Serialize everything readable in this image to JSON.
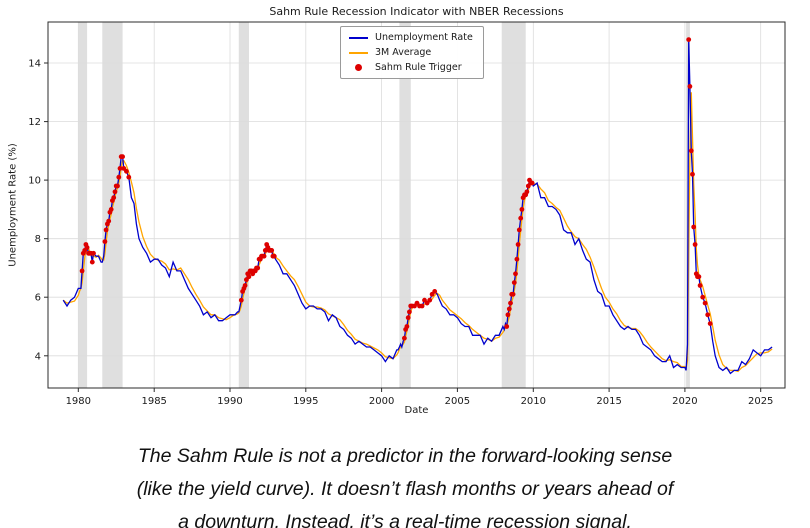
{
  "chart_data": {
    "type": "line",
    "title": "Sahm Rule Recession Indicator with NBER Recessions",
    "xlabel": "Date",
    "ylabel": "Unemployment Rate (%)",
    "xlim": [
      1978.0,
      2026.6
    ],
    "ylim": [
      2.9,
      15.4
    ],
    "x_ticks": [
      1980,
      1985,
      1990,
      1995,
      2000,
      2005,
      2010,
      2015,
      2020,
      2025
    ],
    "y_ticks": [
      4,
      6,
      8,
      10,
      12,
      14
    ],
    "grid": true,
    "colors": {
      "unemployment_line": "#0000cc",
      "three_month_avg_line": "#ffa500",
      "sahm_trigger_dot": "#dd0000",
      "recession_band": "#bfbfbf",
      "gridline": "#dcdcdc",
      "axis": "#2b2b2b"
    },
    "legend": {
      "position": "upper center",
      "entries": [
        {
          "label": "Unemployment Rate",
          "marker": "line",
          "color": "#0000cc"
        },
        {
          "label": "3M Average",
          "marker": "line",
          "color": "#ffa500"
        },
        {
          "label": "Sahm Rule Trigger",
          "marker": "dot",
          "color": "#dd0000"
        }
      ]
    },
    "nber_recession_bands": [
      [
        1980.0,
        1980.58
      ],
      [
        1981.58,
        1982.92
      ],
      [
        1990.58,
        1991.25
      ],
      [
        2001.17,
        2001.92
      ],
      [
        2007.92,
        2009.5
      ],
      [
        2020.08,
        2020.33
      ]
    ],
    "sahm_trigger_x_ranges": [
      [
        1980.2,
        1981.0
      ],
      [
        1981.7,
        1983.4
      ],
      [
        1990.7,
        1992.95
      ],
      [
        2001.5,
        2003.6
      ],
      [
        2008.2,
        2009.95
      ],
      [
        2020.2,
        2021.7
      ]
    ],
    "series": [
      {
        "name": "Unemployment Rate",
        "color": "#0000cc",
        "points": [
          [
            1979.0,
            5.9
          ],
          [
            1979.25,
            5.7
          ],
          [
            1979.5,
            5.9
          ],
          [
            1979.75,
            6.0
          ],
          [
            1980.0,
            6.3
          ],
          [
            1980.08,
            6.3
          ],
          [
            1980.17,
            6.3
          ],
          [
            1980.25,
            6.9
          ],
          [
            1980.33,
            7.5
          ],
          [
            1980.42,
            7.6
          ],
          [
            1980.5,
            7.8
          ],
          [
            1980.58,
            7.7
          ],
          [
            1980.67,
            7.5
          ],
          [
            1980.75,
            7.5
          ],
          [
            1980.83,
            7.5
          ],
          [
            1980.92,
            7.2
          ],
          [
            1981.0,
            7.5
          ],
          [
            1981.17,
            7.4
          ],
          [
            1981.33,
            7.4
          ],
          [
            1981.5,
            7.2
          ],
          [
            1981.58,
            7.2
          ],
          [
            1981.67,
            7.4
          ],
          [
            1981.75,
            7.9
          ],
          [
            1981.83,
            8.3
          ],
          [
            1981.92,
            8.5
          ],
          [
            1982.0,
            8.6
          ],
          [
            1982.08,
            8.9
          ],
          [
            1982.17,
            9.0
          ],
          [
            1982.25,
            9.3
          ],
          [
            1982.33,
            9.4
          ],
          [
            1982.42,
            9.6
          ],
          [
            1982.5,
            9.8
          ],
          [
            1982.58,
            9.8
          ],
          [
            1982.67,
            10.1
          ],
          [
            1982.75,
            10.4
          ],
          [
            1982.83,
            10.8
          ],
          [
            1982.92,
            10.8
          ],
          [
            1983.0,
            10.4
          ],
          [
            1983.17,
            10.3
          ],
          [
            1983.33,
            10.1
          ],
          [
            1983.5,
            9.4
          ],
          [
            1983.67,
            9.2
          ],
          [
            1983.83,
            8.5
          ],
          [
            1984.0,
            8.0
          ],
          [
            1984.25,
            7.7
          ],
          [
            1984.5,
            7.5
          ],
          [
            1984.75,
            7.2
          ],
          [
            1985.0,
            7.3
          ],
          [
            1985.25,
            7.3
          ],
          [
            1985.5,
            7.1
          ],
          [
            1985.75,
            7.0
          ],
          [
            1986.0,
            6.7
          ],
          [
            1986.25,
            7.2
          ],
          [
            1986.5,
            6.9
          ],
          [
            1986.75,
            6.9
          ],
          [
            1987.0,
            6.6
          ],
          [
            1987.25,
            6.3
          ],
          [
            1987.5,
            6.1
          ],
          [
            1987.75,
            5.9
          ],
          [
            1988.0,
            5.7
          ],
          [
            1988.25,
            5.4
          ],
          [
            1988.5,
            5.5
          ],
          [
            1988.75,
            5.3
          ],
          [
            1989.0,
            5.4
          ],
          [
            1989.25,
            5.2
          ],
          [
            1989.5,
            5.2
          ],
          [
            1989.75,
            5.3
          ],
          [
            1990.0,
            5.4
          ],
          [
            1990.17,
            5.4
          ],
          [
            1990.33,
            5.4
          ],
          [
            1990.5,
            5.5
          ],
          [
            1990.58,
            5.5
          ],
          [
            1990.67,
            5.7
          ],
          [
            1990.75,
            5.9
          ],
          [
            1990.83,
            6.2
          ],
          [
            1990.92,
            6.3
          ],
          [
            1991.0,
            6.4
          ],
          [
            1991.08,
            6.6
          ],
          [
            1991.17,
            6.8
          ],
          [
            1991.25,
            6.7
          ],
          [
            1991.33,
            6.9
          ],
          [
            1991.42,
            6.9
          ],
          [
            1991.5,
            6.8
          ],
          [
            1991.58,
            6.9
          ],
          [
            1991.67,
            6.9
          ],
          [
            1991.75,
            7.0
          ],
          [
            1991.83,
            7.0
          ],
          [
            1991.92,
            7.3
          ],
          [
            1992.0,
            7.3
          ],
          [
            1992.08,
            7.4
          ],
          [
            1992.17,
            7.4
          ],
          [
            1992.25,
            7.4
          ],
          [
            1992.33,
            7.6
          ],
          [
            1992.42,
            7.8
          ],
          [
            1992.5,
            7.7
          ],
          [
            1992.58,
            7.6
          ],
          [
            1992.67,
            7.6
          ],
          [
            1992.75,
            7.6
          ],
          [
            1992.83,
            7.4
          ],
          [
            1992.92,
            7.4
          ],
          [
            1993.0,
            7.3
          ],
          [
            1993.25,
            7.1
          ],
          [
            1993.5,
            6.8
          ],
          [
            1993.75,
            6.8
          ],
          [
            1994.0,
            6.6
          ],
          [
            1994.25,
            6.4
          ],
          [
            1994.5,
            6.1
          ],
          [
            1994.75,
            5.8
          ],
          [
            1995.0,
            5.6
          ],
          [
            1995.25,
            5.7
          ],
          [
            1995.5,
            5.7
          ],
          [
            1995.75,
            5.6
          ],
          [
            1996.0,
            5.6
          ],
          [
            1996.25,
            5.5
          ],
          [
            1996.5,
            5.2
          ],
          [
            1996.75,
            5.4
          ],
          [
            1997.0,
            5.3
          ],
          [
            1997.25,
            5.0
          ],
          [
            1997.5,
            4.9
          ],
          [
            1997.75,
            4.7
          ],
          [
            1998.0,
            4.6
          ],
          [
            1998.25,
            4.4
          ],
          [
            1998.5,
            4.5
          ],
          [
            1998.75,
            4.4
          ],
          [
            1999.0,
            4.3
          ],
          [
            1999.25,
            4.3
          ],
          [
            1999.5,
            4.2
          ],
          [
            1999.75,
            4.1
          ],
          [
            2000.0,
            4.0
          ],
          [
            2000.25,
            3.8
          ],
          [
            2000.5,
            4.0
          ],
          [
            2000.75,
            3.9
          ],
          [
            2001.0,
            4.2
          ],
          [
            2001.08,
            4.2
          ],
          [
            2001.17,
            4.3
          ],
          [
            2001.25,
            4.4
          ],
          [
            2001.33,
            4.3
          ],
          [
            2001.42,
            4.5
          ],
          [
            2001.5,
            4.6
          ],
          [
            2001.58,
            4.9
          ],
          [
            2001.67,
            5.0
          ],
          [
            2001.75,
            5.3
          ],
          [
            2001.83,
            5.5
          ],
          [
            2001.92,
            5.7
          ],
          [
            2002.0,
            5.7
          ],
          [
            2002.17,
            5.7
          ],
          [
            2002.33,
            5.8
          ],
          [
            2002.5,
            5.7
          ],
          [
            2002.67,
            5.7
          ],
          [
            2002.83,
            5.9
          ],
          [
            2003.0,
            5.8
          ],
          [
            2003.17,
            5.9
          ],
          [
            2003.33,
            6.1
          ],
          [
            2003.5,
            6.2
          ],
          [
            2003.67,
            6.1
          ],
          [
            2003.83,
            5.9
          ],
          [
            2004.0,
            5.7
          ],
          [
            2004.25,
            5.6
          ],
          [
            2004.5,
            5.4
          ],
          [
            2004.75,
            5.4
          ],
          [
            2005.0,
            5.3
          ],
          [
            2005.25,
            5.1
          ],
          [
            2005.5,
            5.0
          ],
          [
            2005.75,
            5.0
          ],
          [
            2006.0,
            4.7
          ],
          [
            2006.25,
            4.7
          ],
          [
            2006.5,
            4.7
          ],
          [
            2006.75,
            4.4
          ],
          [
            2007.0,
            4.6
          ],
          [
            2007.25,
            4.5
          ],
          [
            2007.5,
            4.7
          ],
          [
            2007.75,
            4.7
          ],
          [
            2008.0,
            5.0
          ],
          [
            2008.08,
            4.9
          ],
          [
            2008.17,
            5.1
          ],
          [
            2008.25,
            5.0
          ],
          [
            2008.33,
            5.4
          ],
          [
            2008.42,
            5.6
          ],
          [
            2008.5,
            5.8
          ],
          [
            2008.58,
            6.1
          ],
          [
            2008.67,
            6.1
          ],
          [
            2008.75,
            6.5
          ],
          [
            2008.83,
            6.8
          ],
          [
            2008.92,
            7.3
          ],
          [
            2009.0,
            7.8
          ],
          [
            2009.08,
            8.3
          ],
          [
            2009.17,
            8.7
          ],
          [
            2009.25,
            9.0
          ],
          [
            2009.33,
            9.4
          ],
          [
            2009.42,
            9.5
          ],
          [
            2009.5,
            9.5
          ],
          [
            2009.58,
            9.6
          ],
          [
            2009.67,
            9.8
          ],
          [
            2009.75,
            10.0
          ],
          [
            2009.83,
            9.9
          ],
          [
            2009.92,
            9.9
          ],
          [
            2010.0,
            9.8
          ],
          [
            2010.25,
            9.9
          ],
          [
            2010.5,
            9.4
          ],
          [
            2010.75,
            9.4
          ],
          [
            2011.0,
            9.1
          ],
          [
            2011.25,
            9.1
          ],
          [
            2011.5,
            9.0
          ],
          [
            2011.75,
            8.8
          ],
          [
            2012.0,
            8.3
          ],
          [
            2012.25,
            8.2
          ],
          [
            2012.5,
            8.2
          ],
          [
            2012.75,
            7.8
          ],
          [
            2013.0,
            8.0
          ],
          [
            2013.25,
            7.6
          ],
          [
            2013.5,
            7.3
          ],
          [
            2013.75,
            7.2
          ],
          [
            2014.0,
            6.6
          ],
          [
            2014.25,
            6.2
          ],
          [
            2014.5,
            6.1
          ],
          [
            2014.75,
            5.7
          ],
          [
            2015.0,
            5.7
          ],
          [
            2015.25,
            5.4
          ],
          [
            2015.5,
            5.2
          ],
          [
            2015.75,
            5.0
          ],
          [
            2016.0,
            4.9
          ],
          [
            2016.25,
            5.0
          ],
          [
            2016.5,
            4.9
          ],
          [
            2016.75,
            4.9
          ],
          [
            2017.0,
            4.7
          ],
          [
            2017.25,
            4.4
          ],
          [
            2017.5,
            4.3
          ],
          [
            2017.75,
            4.2
          ],
          [
            2018.0,
            4.0
          ],
          [
            2018.25,
            3.9
          ],
          [
            2018.5,
            3.8
          ],
          [
            2018.75,
            3.8
          ],
          [
            2019.0,
            4.0
          ],
          [
            2019.25,
            3.6
          ],
          [
            2019.5,
            3.7
          ],
          [
            2019.75,
            3.6
          ],
          [
            2020.0,
            3.6
          ],
          [
            2020.08,
            3.5
          ],
          [
            2020.17,
            4.4
          ],
          [
            2020.25,
            14.8
          ],
          [
            2020.33,
            13.2
          ],
          [
            2020.42,
            11.0
          ],
          [
            2020.5,
            10.2
          ],
          [
            2020.58,
            8.4
          ],
          [
            2020.67,
            7.8
          ],
          [
            2020.75,
            6.8
          ],
          [
            2020.83,
            6.7
          ],
          [
            2020.92,
            6.7
          ],
          [
            2021.0,
            6.4
          ],
          [
            2021.17,
            6.0
          ],
          [
            2021.33,
            5.8
          ],
          [
            2021.5,
            5.4
          ],
          [
            2021.67,
            5.1
          ],
          [
            2021.83,
            4.5
          ],
          [
            2022.0,
            4.0
          ],
          [
            2022.25,
            3.6
          ],
          [
            2022.5,
            3.5
          ],
          [
            2022.75,
            3.6
          ],
          [
            2023.0,
            3.4
          ],
          [
            2023.25,
            3.5
          ],
          [
            2023.5,
            3.5
          ],
          [
            2023.75,
            3.8
          ],
          [
            2024.0,
            3.7
          ],
          [
            2024.25,
            3.9
          ],
          [
            2024.5,
            4.2
          ],
          [
            2024.75,
            4.1
          ],
          [
            2025.0,
            4.0
          ],
          [
            2025.25,
            4.2
          ],
          [
            2025.5,
            4.2
          ],
          [
            2025.75,
            4.3
          ]
        ]
      },
      {
        "name": "3M Average",
        "color": "#ffa500",
        "derived_from": "Unemployment Rate",
        "window_points": 3
      }
    ]
  },
  "caption": {
    "lines": [
      "The Sahm Rule is not a predictor in the forward-looking sense",
      "(like the yield curve). It doesn’t flash months or years ahead of",
      "a downturn. Instead, it’s a real-time recession signal."
    ]
  }
}
